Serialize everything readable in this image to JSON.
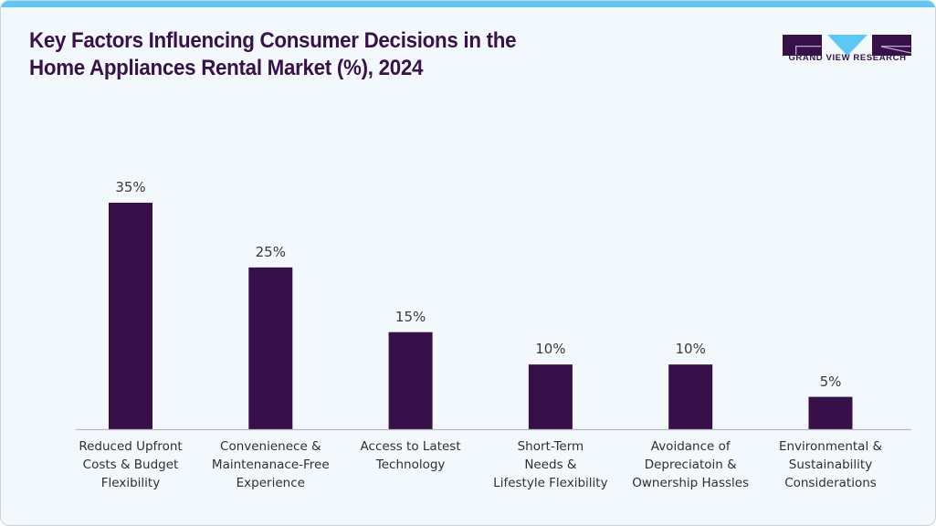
{
  "header": {
    "title_line1": "Key Factors Influencing Consumer Decisions in the",
    "title_line2": "Home Appliances Rental Market (%), 2024",
    "logo_text": "GRAND VIEW RESEARCH"
  },
  "colors": {
    "bar": "#37104a",
    "accent": "#5bc8f5",
    "title": "#37124a",
    "background": "#f3f8fc",
    "axis": "#b8b8b8"
  },
  "chart_data": {
    "type": "bar",
    "title": "Key Factors Influencing Consumer Decisions in the Home Appliances Rental Market (%), 2024",
    "xlabel": "",
    "ylabel": "",
    "ylim": [
      0,
      35
    ],
    "grid": false,
    "legend": "none",
    "categories": [
      "Reduced Upfront\nCosts & Budget\nFlexibility",
      "Convenienece &\nMaintenanace-Free\nExperience",
      "Access to Latest\nTechnology",
      "Short-Term\nNeeds &\nLifestyle Flexibility",
      "Avoidance of\nDepreciatoin &\nOwnership Hassles",
      "Environmental &\nSustainability\nConsiderations"
    ],
    "values": [
      35,
      25,
      15,
      10,
      10,
      5
    ],
    "data_labels": [
      "35%",
      "25%",
      "15%",
      "10%",
      "10%",
      "5%"
    ]
  }
}
